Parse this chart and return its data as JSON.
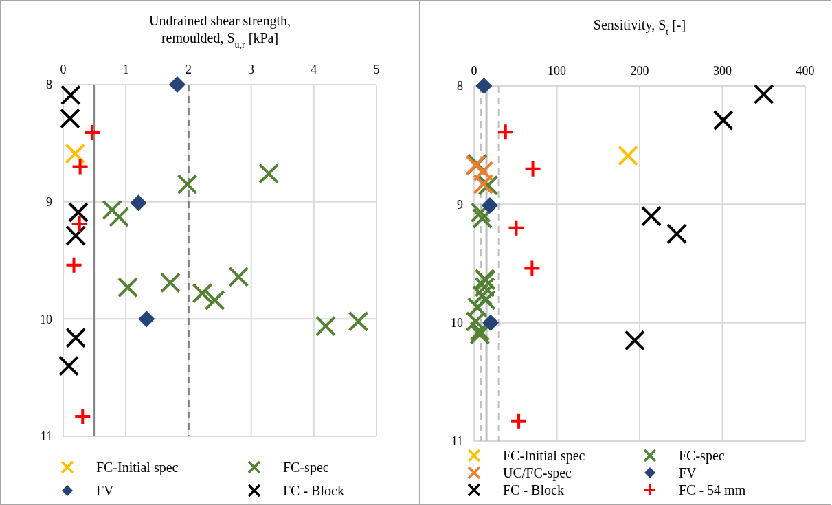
{
  "chart_data": [
    {
      "type": "scatter",
      "title": "Undrained shear strength, remoulded, S$_{u,r}$ [kPa]",
      "xlim": [
        0,
        5
      ],
      "xticks": [
        0,
        1,
        2,
        3,
        4,
        5
      ],
      "ylim": [
        11,
        8
      ],
      "yticks": [
        8,
        9,
        10,
        11
      ],
      "grid": true,
      "legend": "bottom",
      "series": [
        {
          "name": "FC-Initial spec",
          "color": "#ffc000",
          "marker": "x",
          "x": [
            0.19
          ],
          "values": [
            8.59
          ]
        },
        {
          "name": "FC-spec",
          "color": "#548235",
          "marker": "x",
          "x": [
            1.98,
            3.28,
            0.78,
            0.89,
            1.03,
            1.71,
            2.22,
            2.42,
            2.8,
            4.19,
            4.71
          ],
          "values": [
            8.85,
            8.76,
            9.07,
            9.13,
            9.73,
            9.69,
            9.78,
            9.84,
            9.64,
            10.06,
            10.02
          ]
        },
        {
          "name": "FV",
          "color": "#264478",
          "marker": "diamond",
          "x": [
            1.82,
            1.2,
            1.33
          ],
          "values": [
            8.0,
            9.01,
            10.0
          ]
        },
        {
          "name": "FC - Block",
          "color": "#000000",
          "marker": "x",
          "x": [
            0.12,
            0.11,
            0.24,
            0.2,
            0.2,
            0.09
          ],
          "values": [
            8.09,
            8.29,
            9.09,
            9.29,
            10.16,
            10.4
          ]
        },
        {
          "color": "#ff0000",
          "marker": "cross",
          "x": [
            0.46,
            0.27,
            0.26,
            0.17,
            0.31
          ],
          "values": [
            8.41,
            8.7,
            9.19,
            9.54,
            10.83
          ]
        }
      ],
      "ref_lines": [
        {
          "axis": "x",
          "value": 0.5,
          "color": "#808080",
          "line_style": "solid"
        },
        {
          "axis": "x",
          "value": 2,
          "color": "#808080",
          "line_style": "dashed"
        }
      ]
    },
    {
      "type": "scatter",
      "title": "Sensitivity, S$_{t}$ [-]",
      "xlim": [
        0,
        400
      ],
      "xticks": [
        0,
        100,
        200,
        300,
        400
      ],
      "ylim": [
        11,
        8
      ],
      "yticks": [
        8,
        9,
        10,
        11
      ],
      "grid": true,
      "legend": "bottom",
      "series": [
        {
          "name": "FC-Initial spec",
          "color": "#ffc000",
          "marker": "x",
          "x": [
            186
          ],
          "values": [
            8.59
          ]
        },
        {
          "name": "FC-spec",
          "color": "#548235",
          "marker": "x",
          "x": [
            4,
            17,
            8,
            10,
            13,
            14,
            13,
            10,
            14,
            4,
            2,
            7,
            7
          ],
          "values": [
            8.66,
            8.84,
            9.07,
            9.12,
            9.63,
            9.64,
            9.7,
            9.77,
            9.81,
            9.87,
            9.99,
            10.07,
            10.1
          ]
        },
        {
          "name": "UC/FC-spec",
          "color": "#ed7d31",
          "marker": "x",
          "x": [
            2,
            11,
            11
          ],
          "values": [
            8.67,
            8.72,
            8.83
          ]
        },
        {
          "name": "FV",
          "color": "#264478",
          "marker": "diamond",
          "x": [
            12,
            19,
            20
          ],
          "values": [
            8.0,
            9.01,
            10.0
          ]
        },
        {
          "name": "FC - Block",
          "color": "#000000",
          "marker": "x",
          "x": [
            350,
            301,
            214,
            245,
            194
          ],
          "values": [
            8.07,
            8.29,
            9.1,
            9.25,
            10.15
          ]
        },
        {
          "name": "FC - 54 mm",
          "color": "#ff0000",
          "marker": "cross",
          "x": [
            38,
            71,
            51,
            70,
            54
          ],
          "values": [
            8.39,
            8.7,
            9.2,
            9.54,
            10.83
          ]
        }
      ],
      "ref_lines": [
        {
          "axis": "x",
          "value": 8,
          "color": "#bfbfbf",
          "line_style": "dashed"
        },
        {
          "axis": "x",
          "value": 15,
          "color": "#bfbfbf",
          "line_style": "solid"
        },
        {
          "axis": "x",
          "value": 30,
          "color": "#bfbfbf",
          "line_style": "dashed"
        }
      ]
    }
  ]
}
